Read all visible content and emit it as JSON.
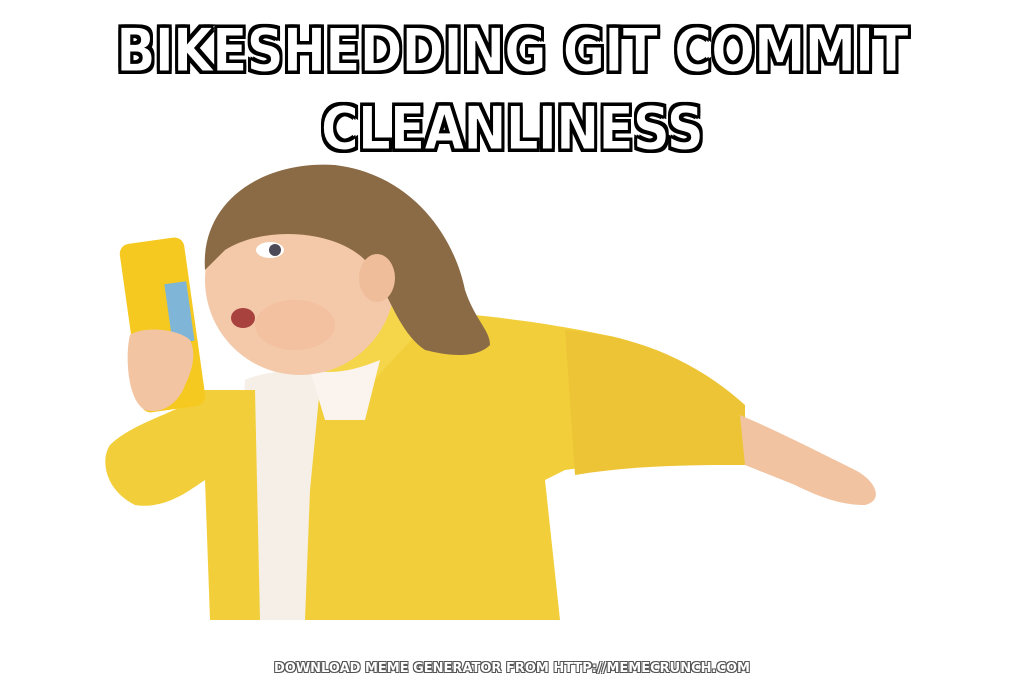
{
  "meme": {
    "top_text_line1": "BIKESHEDDING GIT COMMIT",
    "top_text_line2": "CLEANLINESS",
    "footer_text": "DOWNLOAD MEME GENERATOR FROM HTTP://MEMECRUNCH.COM"
  },
  "colors": {
    "background": "#ffffff",
    "caption_fill": "#ffffff",
    "caption_stroke": "#000000",
    "raincoat": "#f2cf3a",
    "skin": "#f4c9a9",
    "hair": "#8b6b46"
  },
  "image": {
    "subject": "girl-in-yellow-raincoat-running"
  }
}
